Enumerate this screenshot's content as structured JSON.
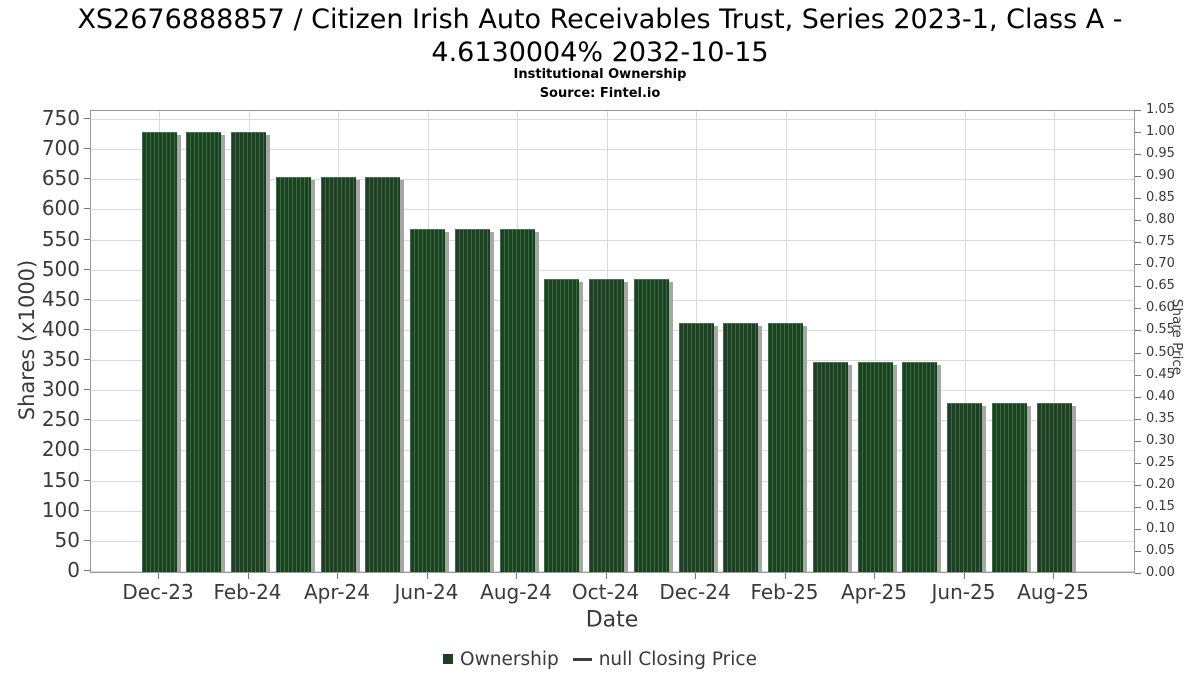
{
  "header": {
    "title_line1": "XS2676888857 / Citizen Irish Auto Receivables Trust, Series 2023-1, Class A -",
    "title_line2": "4.6130004% 2032-10-15",
    "subtitle": "Institutional Ownership",
    "source": "Source: Fintel.io"
  },
  "chart_data": {
    "type": "bar",
    "title": "XS2676888857 / Citizen Irish Auto Receivables Trust, Series 2023-1, Class A - 4.6130004% 2032-10-15",
    "subtitle": "Institutional Ownership",
    "source": "Source: Fintel.io",
    "xlabel": "Date",
    "ylabel_left": "Shares (x1000)",
    "ylabel_right": "Share Price",
    "categories": [
      "Dec-23",
      "Jan-24",
      "Feb-24",
      "Mar-24",
      "Apr-24",
      "May-24",
      "Jun-24",
      "Jul-24",
      "Aug-24",
      "Sep-24",
      "Oct-24",
      "Nov-24",
      "Dec-24",
      "Jan-25",
      "Feb-25",
      "Mar-25",
      "Apr-25",
      "May-25",
      "Jun-25",
      "Jul-25",
      "Aug-25"
    ],
    "series": [
      {
        "name": "Ownership",
        "type": "bar",
        "values": [
          728,
          728,
          728,
          653,
          653,
          653,
          568,
          568,
          568,
          485,
          485,
          485,
          411,
          411,
          411,
          346,
          346,
          346,
          278,
          278,
          278
        ]
      },
      {
        "name": "null Closing Price",
        "type": "line",
        "values": []
      }
    ],
    "xtick_labels": [
      "Dec-23",
      "Feb-24",
      "Apr-24",
      "Jun-24",
      "Aug-24",
      "Oct-24",
      "Dec-24",
      "Feb-25",
      "Apr-25",
      "Jun-25",
      "Aug-25"
    ],
    "ylim_left": [
      0,
      750
    ],
    "ytick_step_left": 50,
    "ylim_right": [
      0,
      1.05
    ],
    "ytick_step_right": 0.05,
    "grid": true,
    "legend_position": "bottom",
    "colors": {
      "bar_fill": "#1d4023",
      "bar_hatch": "#3c6c44",
      "bar_shadow": "#a6a6a6",
      "gridline": "#dadada",
      "tick_text": "#3a3a3a",
      "title_text": "#000000"
    }
  },
  "legend": {
    "items": [
      {
        "label": "Ownership",
        "marker": "square",
        "color": "#1d4023"
      },
      {
        "label": "null Closing Price",
        "marker": "line",
        "color": "#3d3d3d"
      }
    ]
  }
}
